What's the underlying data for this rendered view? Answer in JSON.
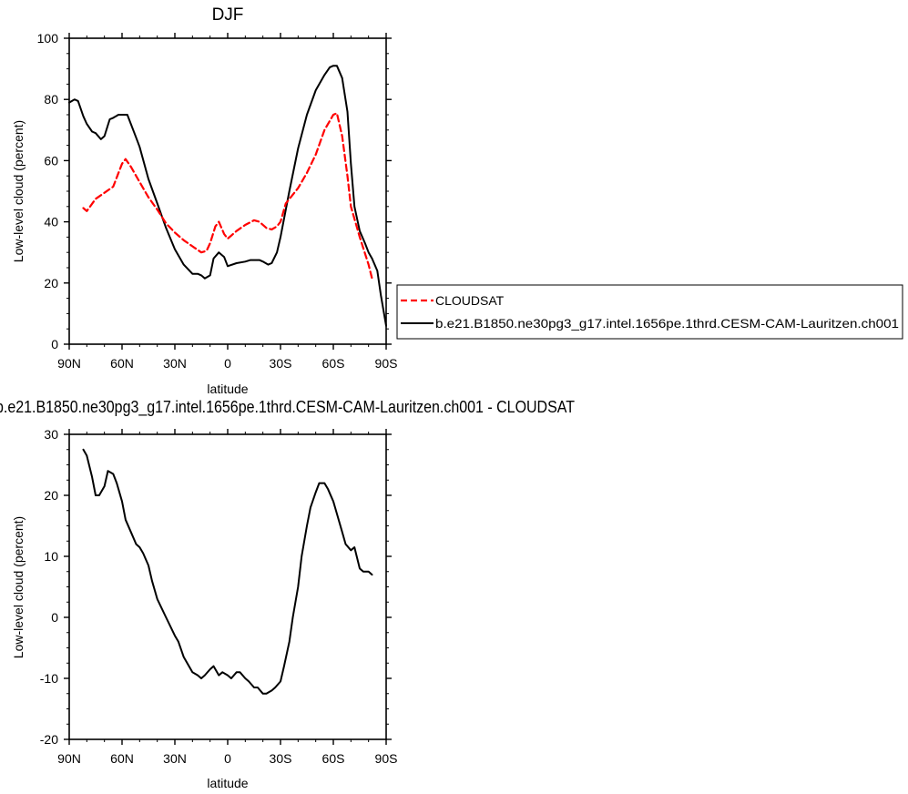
{
  "colors": {
    "cloudsat": "#ff0000",
    "model": "#000000"
  },
  "chart_data": [
    {
      "type": "line",
      "title": "DJF",
      "xlabel": "latitude",
      "ylabel": "Low-level cloud (percent)",
      "xlim": [
        90,
        -90
      ],
      "ylim": [
        0,
        100
      ],
      "x_ticks": [
        90,
        60,
        30,
        0,
        -30,
        -60,
        -90
      ],
      "x_tick_labels": [
        "90N",
        "60N",
        "30N",
        "0",
        "30S",
        "60S",
        "90S"
      ],
      "y_ticks": [
        0,
        20,
        40,
        60,
        80,
        100
      ],
      "y_tick_labels": [
        "0",
        "20",
        "40",
        "60",
        "80",
        "100"
      ],
      "legend_position": "right",
      "series": [
        {
          "name": "CLOUDSAT",
          "style": "dashed",
          "color": "#ff0000",
          "x": [
            82,
            80,
            75,
            70,
            65,
            60,
            58,
            55,
            50,
            45,
            40,
            35,
            30,
            25,
            20,
            15,
            12,
            10,
            7,
            5,
            2,
            0,
            -5,
            -10,
            -15,
            -18,
            -22,
            -25,
            -28,
            -30,
            -33,
            -40,
            -45,
            -50,
            -55,
            -60,
            -62,
            -65,
            -68,
            -70,
            -75,
            -80,
            -82
          ],
          "y": [
            44.5,
            43.5,
            47.5,
            49.5,
            51.5,
            59,
            60.5,
            58,
            53,
            48,
            44,
            39.5,
            36.5,
            34,
            32,
            30,
            30.5,
            33,
            38.5,
            40,
            36,
            34.5,
            37,
            39,
            40.5,
            40,
            38,
            37.5,
            38.5,
            40,
            46,
            51,
            56,
            62,
            70,
            75,
            75.5,
            68,
            55,
            45,
            35,
            26,
            21.5
          ]
        },
        {
          "name": "b.e21.B1850.ne30pg3_g17.intel.1656pe.1thrd.CESM-CAM-Lauritzen.ch001",
          "style": "solid",
          "color": "#000000",
          "x": [
            90,
            87,
            85,
            82,
            80,
            77,
            75,
            72,
            70,
            67,
            65,
            62,
            60,
            57,
            55,
            52,
            50,
            45,
            40,
            35,
            30,
            25,
            20,
            17,
            15,
            13,
            10,
            8,
            5,
            2,
            0,
            -5,
            -10,
            -13,
            -15,
            -18,
            -20,
            -23,
            -25,
            -28,
            -30,
            -35,
            -40,
            -45,
            -50,
            -55,
            -58,
            -60,
            -62,
            -65,
            -68,
            -70,
            -72,
            -75,
            -78,
            -80,
            -82,
            -85,
            -87,
            -90
          ],
          "y": [
            79,
            80,
            79.5,
            74.5,
            72,
            69.5,
            69,
            67,
            68,
            73.5,
            74,
            75,
            75,
            75,
            72,
            67.5,
            64.5,
            54,
            46,
            38,
            31,
            26,
            23,
            23,
            22.5,
            21.5,
            22.5,
            28,
            30,
            28.5,
            25.5,
            26.5,
            27,
            27.5,
            27.5,
            27.5,
            27,
            26,
            26.5,
            30,
            35,
            50,
            64,
            75,
            83,
            88,
            90.5,
            91,
            91,
            87,
            76,
            59,
            45,
            37,
            33,
            30,
            28,
            24,
            16,
            6
          ]
        }
      ]
    },
    {
      "type": "line",
      "title": "b.e21.B1850.ne30pg3_g17.intel.1656pe.1thrd.CESM-CAM-Lauritzen.ch001 - CLOUDSAT",
      "xlabel": "latitude",
      "ylabel": "Low-level cloud (percent)",
      "xlim": [
        90,
        -90
      ],
      "ylim": [
        -20,
        30
      ],
      "x_ticks": [
        90,
        60,
        30,
        0,
        -30,
        -60,
        -90
      ],
      "x_tick_labels": [
        "90N",
        "60N",
        "30N",
        "0",
        "30S",
        "60S",
        "90S"
      ],
      "y_ticks": [
        -20,
        -10,
        0,
        10,
        20,
        30
      ],
      "y_tick_labels": [
        "-20",
        "-10",
        "0",
        "10",
        "20",
        "30"
      ],
      "series": [
        {
          "color": "#000000",
          "x": [
            82,
            80,
            77,
            75,
            73,
            70,
            68,
            65,
            63,
            60,
            58,
            55,
            52,
            50,
            48,
            45,
            43,
            40,
            35,
            30,
            28,
            25,
            22,
            20,
            17,
            15,
            13,
            10,
            8,
            5,
            3,
            0,
            -2,
            -5,
            -7,
            -10,
            -12,
            -15,
            -17,
            -20,
            -22,
            -25,
            -27,
            -30,
            -32,
            -35,
            -37,
            -40,
            -42,
            -45,
            -47,
            -50,
            -52,
            -55,
            -57,
            -60,
            -62,
            -65,
            -67,
            -70,
            -72,
            -75,
            -77,
            -80,
            -82
          ],
          "y": [
            27.5,
            26.5,
            23,
            20,
            20,
            21.5,
            24,
            23.5,
            22,
            19,
            16,
            14,
            12,
            11.5,
            10.5,
            8.5,
            6,
            3,
            0,
            -3,
            -4,
            -6.5,
            -8,
            -9,
            -9.5,
            -10,
            -9.5,
            -8.5,
            -8,
            -9.5,
            -9,
            -9.5,
            -10,
            -9,
            -9,
            -10,
            -10.5,
            -11.5,
            -11.5,
            -12.5,
            -12.5,
            -12,
            -11.5,
            -10.5,
            -8,
            -4,
            0,
            5,
            10,
            15,
            18,
            20.5,
            22,
            22,
            21,
            19,
            17,
            14,
            12,
            11,
            11.5,
            8,
            7.5,
            7.5,
            7
          ]
        }
      ]
    }
  ]
}
